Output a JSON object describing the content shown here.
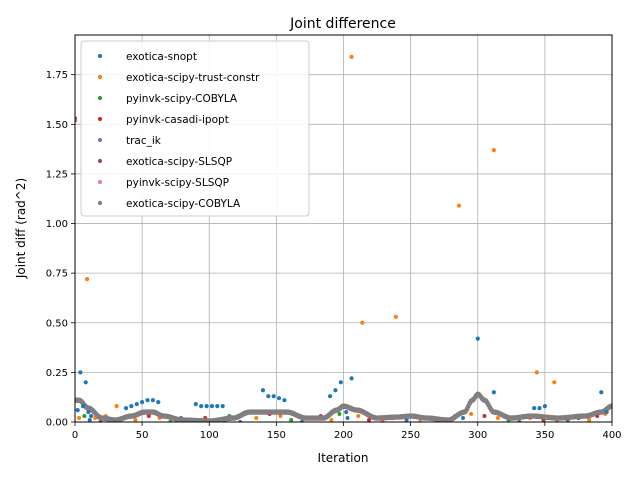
{
  "chart_data": {
    "type": "scatter",
    "title": "Joint difference",
    "xlabel": "Iteration",
    "ylabel": "Joint diff (rad^2)",
    "xlim": [
      0,
      400
    ],
    "ylim": [
      0,
      1.95
    ],
    "x_ticks": [
      0,
      50,
      100,
      150,
      200,
      250,
      300,
      350,
      400
    ],
    "y_ticks": [
      0.0,
      0.25,
      0.5,
      0.75,
      1.0,
      1.25,
      1.5,
      1.75
    ],
    "x_tick_labels": [
      "0",
      "50",
      "100",
      "150",
      "200",
      "250",
      "300",
      "350",
      "400"
    ],
    "y_tick_labels": [
      "0.00",
      "0.25",
      "0.50",
      "0.75",
      "1.00",
      "1.25",
      "1.50",
      "1.75"
    ],
    "grid": true,
    "legend_position": "upper-left",
    "series": [
      {
        "name": "exotica-snopt",
        "color": "#1f77b4",
        "x": [
          0,
          2,
          4,
          6,
          8,
          10,
          12,
          38,
          42,
          46,
          50,
          54,
          58,
          62,
          90,
          94,
          98,
          102,
          106,
          110,
          140,
          144,
          148,
          152,
          156,
          190,
          194,
          198,
          202,
          206,
          300,
          312,
          342,
          346,
          350,
          392,
          396
        ],
        "y": [
          1.52,
          0.06,
          0.25,
          0.08,
          0.2,
          0.05,
          0.03,
          0.07,
          0.08,
          0.09,
          0.1,
          0.11,
          0.11,
          0.1,
          0.09,
          0.08,
          0.08,
          0.08,
          0.08,
          0.08,
          0.16,
          0.13,
          0.13,
          0.12,
          0.11,
          0.13,
          0.16,
          0.2,
          0.05,
          0.22,
          0.42,
          0.15,
          0.07,
          0.07,
          0.08,
          0.15,
          0.05
        ]
      },
      {
        "name": "exotica-scipy-trust-constr",
        "color": "#ff7f0e",
        "x": [
          9,
          31,
          206,
          214,
          239,
          286,
          312,
          344,
          357
        ],
        "y": [
          0.72,
          0.08,
          1.84,
          0.5,
          0.53,
          1.09,
          1.37,
          0.25,
          0.2
        ]
      },
      {
        "name": "pyinvk-scipy-COBYLA",
        "color": "#2ca02c",
        "x": [],
        "y": []
      },
      {
        "name": "pyinvk-casadi-ipopt",
        "color": "#d62728",
        "x": [
          0
        ],
        "y": [
          1.53
        ]
      },
      {
        "name": "trac_ik",
        "color": "#9467bd",
        "x": [
          0
        ],
        "y": [
          1.52
        ]
      },
      {
        "name": "exotica-scipy-SLSQP",
        "color": "#8c564b",
        "x": [],
        "y": []
      },
      {
        "name": "pyinvk-scipy-SLSQP",
        "color": "#e377c2",
        "x": [],
        "y": []
      },
      {
        "name": "exotica-scipy-COBYLA",
        "color": "#7f7f7f",
        "x": [],
        "y": []
      }
    ],
    "curve_keypoints": {
      "x": [
        0,
        3,
        10,
        20,
        30,
        42,
        52,
        58,
        66,
        80,
        100,
        118,
        130,
        140,
        158,
        172,
        185,
        195,
        200,
        210,
        225,
        240,
        250,
        262,
        278,
        290,
        296,
        300,
        305,
        312,
        325,
        340,
        360,
        380,
        392,
        400
      ],
      "y": [
        0.11,
        0.11,
        0.07,
        0.02,
        0.01,
        0.03,
        0.05,
        0.05,
        0.03,
        0.01,
        0.005,
        0.02,
        0.05,
        0.05,
        0.05,
        0.02,
        0.02,
        0.06,
        0.08,
        0.06,
        0.02,
        0.025,
        0.03,
        0.02,
        0.01,
        0.05,
        0.11,
        0.14,
        0.11,
        0.05,
        0.02,
        0.03,
        0.02,
        0.03,
        0.05,
        0.08
      ]
    },
    "scatter_noise_points": {
      "x": [
        3,
        7,
        11,
        15,
        19,
        23,
        27,
        35,
        45,
        55,
        63,
        71,
        79,
        87,
        97,
        107,
        115,
        123,
        135,
        145,
        153,
        161,
        169,
        177,
        183,
        191,
        197,
        203,
        211,
        219,
        229,
        237,
        247,
        257,
        267,
        277,
        283,
        289,
        295,
        305,
        315,
        323,
        331,
        339,
        349,
        359,
        367,
        375,
        383,
        389,
        395
      ],
      "y": [
        0.02,
        0.03,
        0.01,
        0.02,
        0.0,
        0.03,
        0.01,
        0.02,
        0.01,
        0.03,
        0.02,
        0.0,
        0.02,
        0.01,
        0.02,
        0.01,
        0.03,
        0.0,
        0.02,
        0.04,
        0.03,
        0.01,
        0.0,
        0.02,
        0.03,
        0.01,
        0.04,
        0.02,
        0.03,
        0.01,
        0.0,
        0.02,
        0.01,
        0.0,
        0.02,
        0.01,
        0.03,
        0.02,
        0.04,
        0.03,
        0.02,
        0.01,
        0.0,
        0.02,
        0.01,
        0.0,
        0.01,
        0.02,
        0.01,
        0.03,
        0.04
      ]
    }
  }
}
